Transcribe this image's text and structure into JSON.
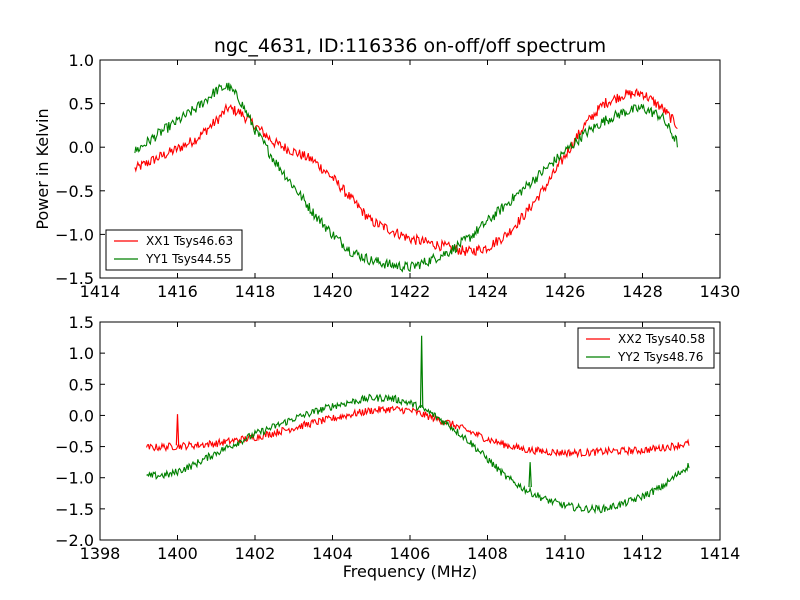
{
  "title": "ngc_4631, ID:116336 on-off/off spectrum",
  "colors": {
    "xx": "#ff0000",
    "yy": "#008000"
  },
  "chart_data": [
    {
      "type": "line",
      "ylabel": "Power in Kelvin",
      "xlabel": "",
      "xlim": [
        1414,
        1430
      ],
      "ylim": [
        -1.5,
        1.0
      ],
      "xticks": [
        "1414",
        "1416",
        "1418",
        "1420",
        "1422",
        "1424",
        "1426",
        "1428",
        "1430"
      ],
      "yticks": [
        "−1.5",
        "−1.0",
        "−0.5",
        "0.0",
        "0.5",
        "1.0"
      ],
      "legend_position": "lower-left",
      "x_range": [
        1414.9,
        1428.9
      ],
      "series": [
        {
          "name": "XX1 Tsys46.63",
          "color": "#ff0000",
          "x": [
            1414.9,
            1415.5,
            1416.0,
            1416.5,
            1417.0,
            1417.3,
            1417.6,
            1418.0,
            1418.5,
            1419.0,
            1419.5,
            1420.0,
            1420.3,
            1420.6,
            1421.0,
            1421.5,
            1422.0,
            1422.5,
            1423.0,
            1423.5,
            1424.0,
            1424.5,
            1425.0,
            1425.5,
            1426.0,
            1426.5,
            1427.0,
            1427.5,
            1428.0,
            1428.5,
            1428.9
          ],
          "y": [
            -0.25,
            -0.12,
            -0.02,
            0.1,
            0.3,
            0.45,
            0.4,
            0.25,
            0.05,
            -0.05,
            -0.15,
            -0.35,
            -0.5,
            -0.65,
            -0.85,
            -0.95,
            -1.05,
            -1.1,
            -1.15,
            -1.2,
            -1.15,
            -1.0,
            -0.75,
            -0.45,
            -0.1,
            0.25,
            0.5,
            0.6,
            0.62,
            0.45,
            0.25
          ]
        },
        {
          "name": "YY1 Tsys44.55",
          "color": "#008000",
          "x": [
            1414.9,
            1415.5,
            1416.0,
            1416.5,
            1417.0,
            1417.3,
            1417.6,
            1418.0,
            1418.5,
            1419.0,
            1419.5,
            1420.0,
            1420.5,
            1421.0,
            1421.5,
            1422.0,
            1422.5,
            1423.0,
            1423.5,
            1424.0,
            1424.5,
            1425.0,
            1425.5,
            1426.0,
            1426.5,
            1427.0,
            1427.5,
            1428.0,
            1428.5,
            1428.9
          ],
          "y": [
            -0.05,
            0.15,
            0.3,
            0.45,
            0.65,
            0.7,
            0.55,
            0.2,
            -0.15,
            -0.45,
            -0.75,
            -1.0,
            -1.2,
            -1.3,
            -1.35,
            -1.38,
            -1.3,
            -1.2,
            -1.05,
            -0.85,
            -0.65,
            -0.45,
            -0.25,
            -0.05,
            0.15,
            0.3,
            0.4,
            0.45,
            0.35,
            0.05
          ]
        }
      ]
    },
    {
      "type": "line",
      "ylabel": "",
      "xlabel": "Frequency (MHz)",
      "xlim": [
        1398,
        1414
      ],
      "ylim": [
        -2.0,
        1.5
      ],
      "xticks": [
        "1398",
        "1400",
        "1402",
        "1404",
        "1406",
        "1408",
        "1410",
        "1412",
        "1414"
      ],
      "yticks": [
        "−2.0",
        "−1.5",
        "−1.0",
        "−0.5",
        "0.0",
        "0.5",
        "1.0",
        "1.5"
      ],
      "legend_position": "upper-right",
      "x_range": [
        1399.2,
        1413.2
      ],
      "series": [
        {
          "name": "XX2 Tsys40.58",
          "color": "#ff0000",
          "x": [
            1399.2,
            1399.8,
            1400.4,
            1401.0,
            1401.5,
            1402.0,
            1402.5,
            1403.0,
            1403.5,
            1404.0,
            1404.5,
            1405.0,
            1405.5,
            1406.0,
            1406.5,
            1407.0,
            1407.5,
            1408.0,
            1408.5,
            1409.0,
            1409.5,
            1410.0,
            1410.5,
            1411.0,
            1411.5,
            1412.0,
            1412.5,
            1413.2
          ],
          "y": [
            -0.52,
            -0.5,
            -0.48,
            -0.45,
            -0.4,
            -0.35,
            -0.28,
            -0.2,
            -0.12,
            -0.05,
            0.02,
            0.08,
            0.1,
            0.08,
            -0.02,
            -0.12,
            -0.25,
            -0.38,
            -0.48,
            -0.55,
            -0.58,
            -0.6,
            -0.6,
            -0.58,
            -0.57,
            -0.56,
            -0.52,
            -0.45
          ]
        },
        {
          "name": "YY2 Tsys48.76",
          "color": "#008000",
          "x": [
            1399.2,
            1399.8,
            1400.4,
            1401.0,
            1401.5,
            1402.0,
            1402.5,
            1403.0,
            1403.5,
            1404.0,
            1404.5,
            1405.0,
            1405.5,
            1406.0,
            1406.5,
            1407.0,
            1407.5,
            1408.0,
            1408.5,
            1409.0,
            1409.5,
            1410.0,
            1410.5,
            1411.0,
            1411.5,
            1412.0,
            1412.5,
            1413.2
          ],
          "y": [
            -0.98,
            -0.95,
            -0.8,
            -0.6,
            -0.45,
            -0.3,
            -0.18,
            -0.05,
            0.05,
            0.15,
            0.22,
            0.28,
            0.28,
            0.2,
            0.05,
            -0.15,
            -0.4,
            -0.7,
            -1.0,
            -1.2,
            -1.35,
            -1.45,
            -1.5,
            -1.5,
            -1.42,
            -1.3,
            -1.15,
            -0.8
          ]
        }
      ]
    }
  ]
}
